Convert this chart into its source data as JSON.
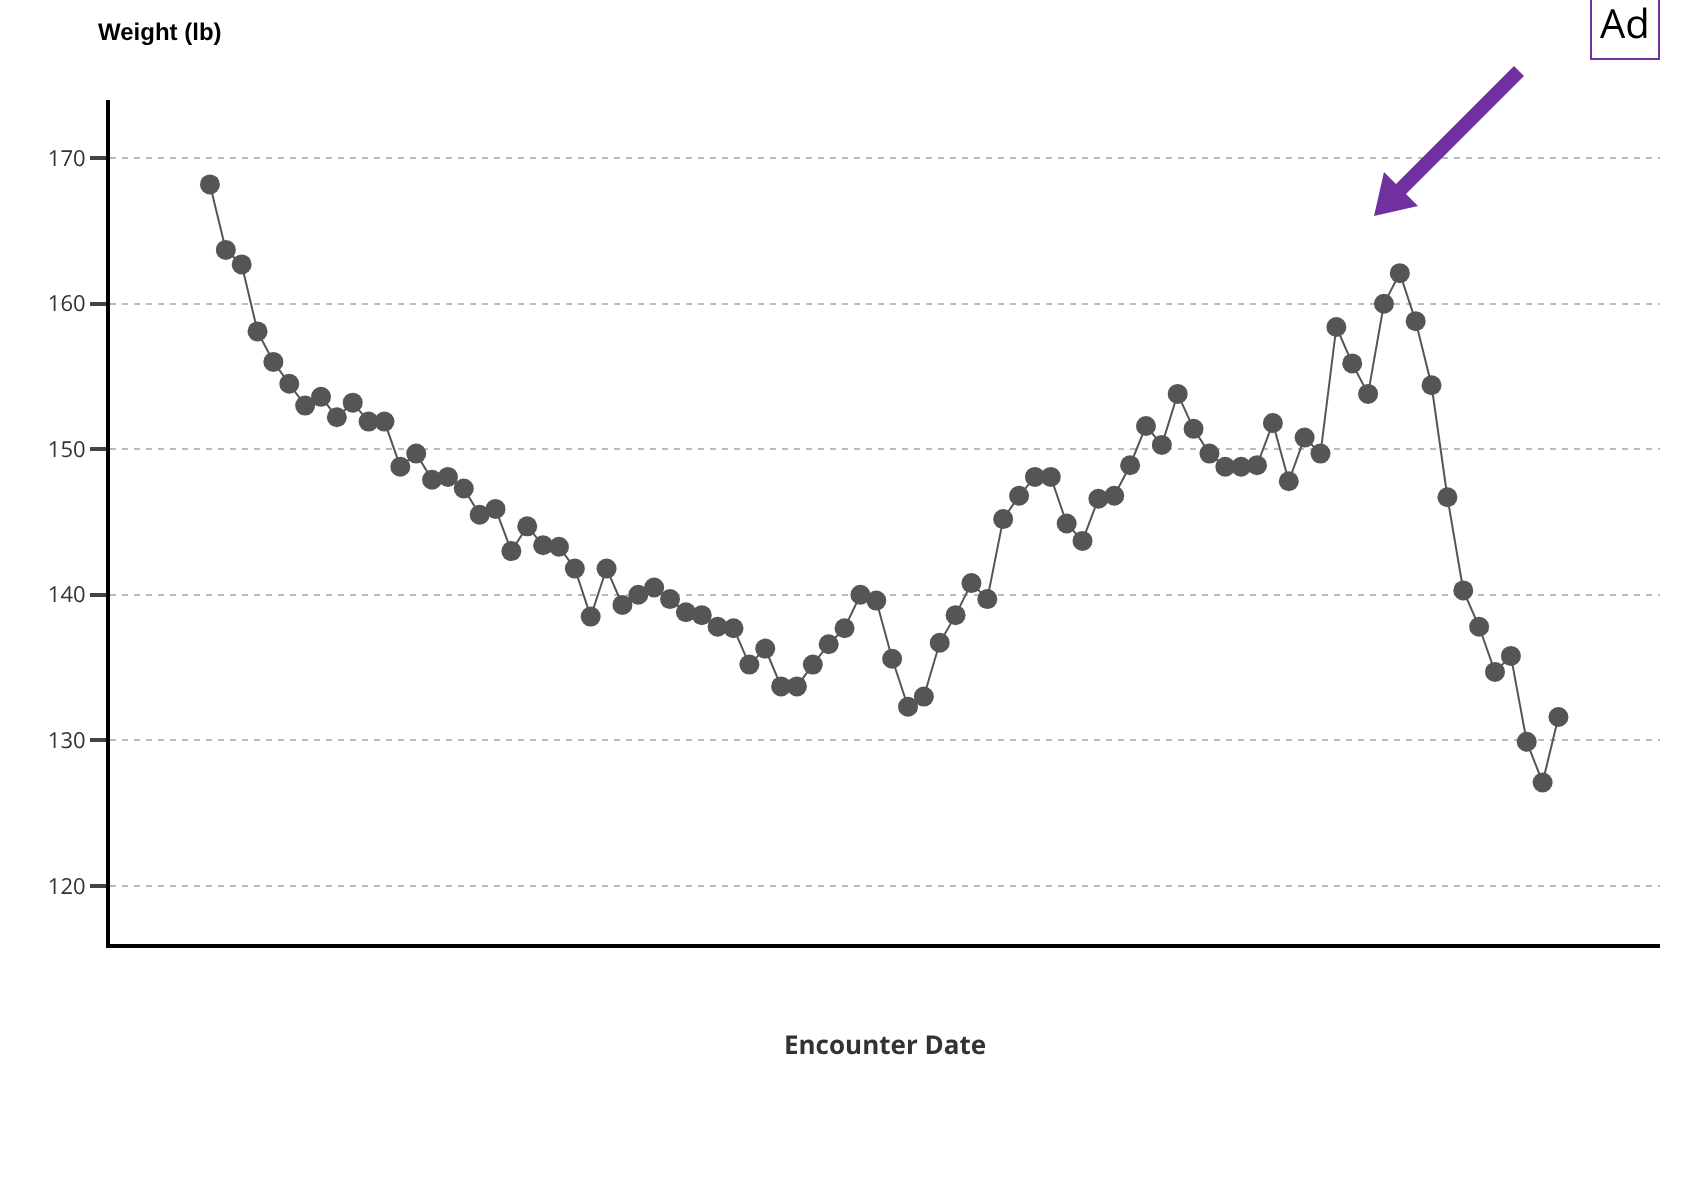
{
  "chart_data": {
    "type": "line",
    "xlabel": "Encounter Date",
    "ylabel": "Weight (lb)",
    "annotations": [
      "Ad"
    ],
    "categories": [
      null,
      null,
      null,
      null,
      null,
      null,
      null,
      null,
      null,
      null,
      null,
      null,
      null,
      null,
      null,
      null,
      null,
      null,
      null,
      null,
      null,
      null,
      null,
      null,
      null,
      null,
      null,
      null,
      null,
      null,
      null,
      null,
      null,
      null,
      null,
      null,
      null,
      null,
      null,
      null,
      null,
      null,
      null,
      null,
      null,
      null,
      null,
      null,
      null,
      null,
      null,
      null,
      null,
      null,
      null,
      null,
      null,
      null,
      null,
      null,
      null,
      null,
      null,
      null,
      null,
      null,
      null,
      null,
      null,
      null,
      null,
      null,
      null,
      null,
      null,
      null,
      null,
      null,
      null,
      null,
      null,
      null,
      null,
      null,
      null,
      null
    ],
    "series": [
      {
        "color": "#555555",
        "values": [
          168.2,
          163.7,
          162.7,
          158.1,
          156.0,
          154.5,
          153.0,
          153.6,
          152.2,
          153.2,
          151.9,
          151.9,
          148.8,
          149.7,
          147.9,
          148.1,
          147.3,
          145.5,
          145.9,
          143.0,
          144.7,
          143.4,
          143.3,
          141.8,
          138.5,
          141.8,
          139.3,
          140.0,
          140.5,
          139.7,
          138.8,
          138.6,
          137.8,
          137.7,
          135.2,
          136.3,
          133.7,
          133.7,
          135.2,
          136.6,
          137.7,
          140.0,
          139.6,
          135.6,
          132.3,
          133.0,
          136.7,
          138.6,
          140.8,
          139.7,
          145.2,
          146.8,
          148.1,
          148.1,
          144.9,
          143.7,
          146.6,
          146.8,
          148.9,
          151.6,
          150.3,
          153.8,
          151.4,
          149.7,
          148.8,
          148.8,
          148.9,
          151.8,
          147.8,
          150.8,
          149.7,
          158.4,
          155.9,
          153.8,
          160.0,
          162.1,
          158.8,
          154.4,
          146.7,
          140.3,
          137.8,
          134.7,
          135.8,
          129.9,
          127.1,
          131.6
        ]
      }
    ],
    "ylim": [
      116,
      174
    ],
    "yticks": [
      120,
      130,
      140,
      150,
      160,
      170
    ],
    "grid": true,
    "marker": "circle",
    "line_style": "solid",
    "tick_labels": "y"
  }
}
